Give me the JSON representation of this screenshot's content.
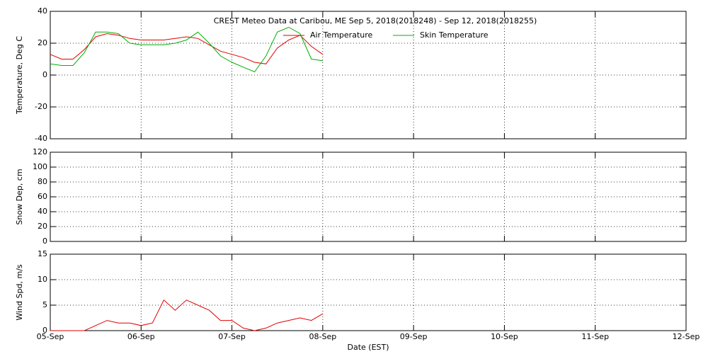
{
  "chart_data": [
    {
      "type": "line",
      "title": "CREST Meteo Data at Caribou, ME   Sep  5, 2018(2018248) - Sep 12, 2018(2018255)",
      "ylabel": "Temperature, Deg C",
      "x": [
        0,
        0.125,
        0.25,
        0.375,
        0.5,
        0.625,
        0.75,
        0.875,
        1,
        1.125,
        1.25,
        1.375,
        1.5,
        1.625,
        1.75,
        1.875,
        2,
        2.125,
        2.25,
        2.375,
        2.5,
        2.625,
        2.75,
        2.875,
        3
      ],
      "series": [
        {
          "name": "Air Temperature",
          "color": "#e00000",
          "values": [
            13,
            10,
            10,
            16,
            24,
            26,
            25,
            23,
            22,
            22,
            22,
            23,
            24,
            23,
            19,
            15,
            13,
            11,
            8,
            7,
            17,
            22,
            25,
            18,
            13
          ]
        },
        {
          "name": "Skin Temperature",
          "color": "#00b000",
          "values": [
            7,
            6,
            6,
            14,
            27,
            27,
            26,
            20,
            19,
            19,
            19,
            20,
            22,
            27,
            20,
            12,
            8,
            5,
            2,
            12,
            27,
            30,
            26,
            10,
            9
          ]
        }
      ],
      "xlim": [
        0,
        7
      ],
      "xticks": [
        0,
        1,
        2,
        3,
        4,
        5,
        6,
        7
      ],
      "ylim": [
        -40,
        40
      ],
      "yticks": [
        -40,
        -20,
        0,
        20,
        40
      ],
      "grid": true
    },
    {
      "type": "line",
      "ylabel": "Snow Dep, cm",
      "xlim": [
        0,
        7
      ],
      "xticks": [
        0,
        1,
        2,
        3,
        4,
        5,
        6,
        7
      ],
      "ylim": [
        0,
        120
      ],
      "yticks": [
        0,
        20,
        40,
        60,
        80,
        100,
        120
      ],
      "grid": true
    },
    {
      "type": "line",
      "xlabel": "Date (EST)",
      "ylabel": "Wind Spd, m/s",
      "x": [
        0,
        0.125,
        0.25,
        0.375,
        0.5,
        0.625,
        0.75,
        0.875,
        1,
        1.125,
        1.25,
        1.375,
        1.5,
        1.625,
        1.75,
        1.875,
        2,
        2.125,
        2.25,
        2.375,
        2.5,
        2.625,
        2.75,
        2.875,
        3
      ],
      "series": [
        {
          "color": "#e00000",
          "values": [
            0,
            0,
            0,
            0,
            1,
            2,
            1.5,
            1.5,
            1,
            1.5,
            6,
            4,
            6,
            5,
            4,
            2,
            2,
            0.5,
            0,
            0.5,
            1.5,
            2,
            2.5,
            2,
            3.3
          ]
        }
      ],
      "xlim": [
        0,
        7
      ],
      "xticks": [
        {
          "value": 0,
          "label": "05-Sep"
        },
        {
          "value": 1,
          "label": "06-Sep"
        },
        {
          "value": 2,
          "label": "07-Sep"
        },
        {
          "value": 3,
          "label": "08-Sep"
        },
        {
          "value": 4,
          "label": "09-Sep"
        },
        {
          "value": 5,
          "label": "10-Sep"
        },
        {
          "value": 6,
          "label": "11-Sep"
        },
        {
          "value": 7,
          "label": "12-Sep"
        }
      ],
      "ylim": [
        0,
        15
      ],
      "yticks": [
        0,
        5,
        10,
        15
      ],
      "grid": true
    }
  ]
}
